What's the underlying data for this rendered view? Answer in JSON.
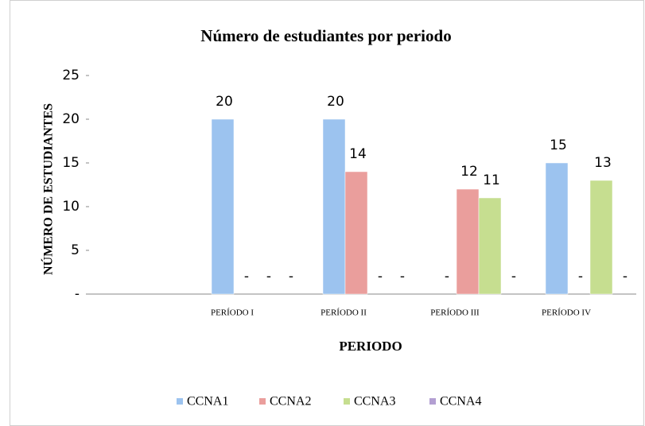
{
  "chart_data": {
    "type": "bar",
    "title": "Número de estudiantes por periodo",
    "x_label": "PERIODO",
    "y_label": "NÚMERO DE ESTUDIANTES",
    "categories": [
      "PERÍODO I",
      "PERÍODO II",
      "PERÍODO III",
      "PERÍODO IV"
    ],
    "series": [
      {
        "name": "CCNA1",
        "color": "#9cc3ef",
        "values": [
          20,
          20,
          0,
          15
        ],
        "value_labels": [
          "20",
          "20",
          "-",
          "15"
        ]
      },
      {
        "name": "CCNA2",
        "color": "#ea9e9c",
        "values": [
          0,
          14,
          12,
          0
        ],
        "value_labels": [
          "-",
          "14",
          "12",
          "-"
        ]
      },
      {
        "name": "CCNA3",
        "color": "#c6de90",
        "values": [
          0,
          0,
          11,
          13
        ],
        "value_labels": [
          "-",
          "-",
          "11",
          "13"
        ]
      },
      {
        "name": "CCNA4",
        "color": "#b39fd2",
        "values": [
          0,
          0,
          0,
          0
        ],
        "value_labels": [
          "-",
          "-",
          "-",
          "-"
        ]
      }
    ],
    "ylim": [
      0,
      25
    ],
    "yticks": [
      {
        "value": 0,
        "label": "-"
      },
      5,
      10,
      15,
      20,
      25
    ],
    "legend": "bottom"
  }
}
